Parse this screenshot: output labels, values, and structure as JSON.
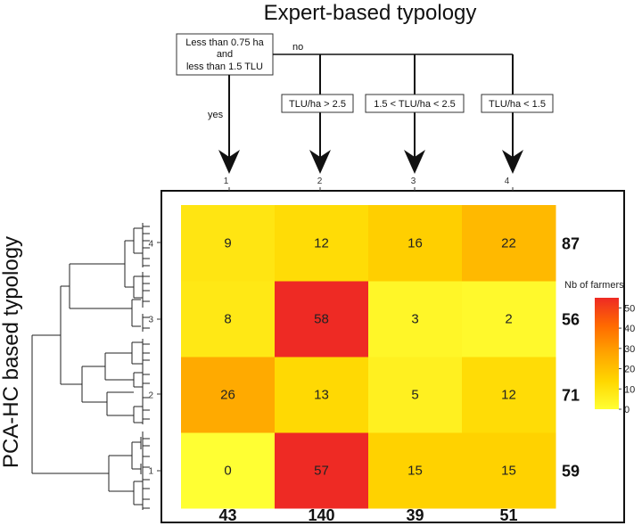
{
  "chart_data": {
    "type": "heatmap",
    "title": "Expert-based typology",
    "ylabel": "PCA-HC based typology",
    "x_categories": [
      "1",
      "2",
      "3",
      "4"
    ],
    "y_categories": [
      "1",
      "2",
      "3",
      "4"
    ],
    "values": [
      [
        0,
        57,
        15,
        15
      ],
      [
        26,
        13,
        5,
        12
      ],
      [
        8,
        58,
        3,
        2
      ],
      [
        9,
        12,
        16,
        22
      ]
    ],
    "row_totals": [
      "59",
      "71",
      "56",
      "87"
    ],
    "col_totals": [
      "43",
      "140",
      "39",
      "51"
    ],
    "legend": {
      "title": "Nb of farmers",
      "min": 0,
      "max": 55,
      "ticks": [
        "0",
        "10",
        "20",
        "30",
        "40",
        "50"
      ],
      "colors": [
        "#ffff33",
        "#ffd700",
        "#ffa500",
        "#ff6a00",
        "#ee2a24"
      ]
    }
  },
  "decision_tree": {
    "root": {
      "line1": "Less than 0.75 ha",
      "line2": "and",
      "line3": "less than 1.5 TLU"
    },
    "yes_label": "yes",
    "no_label": "no",
    "branches": [
      "TLU/ha > 2.5",
      "1.5 < TLU/ha < 2.5",
      "TLU/ha < 1.5"
    ]
  }
}
